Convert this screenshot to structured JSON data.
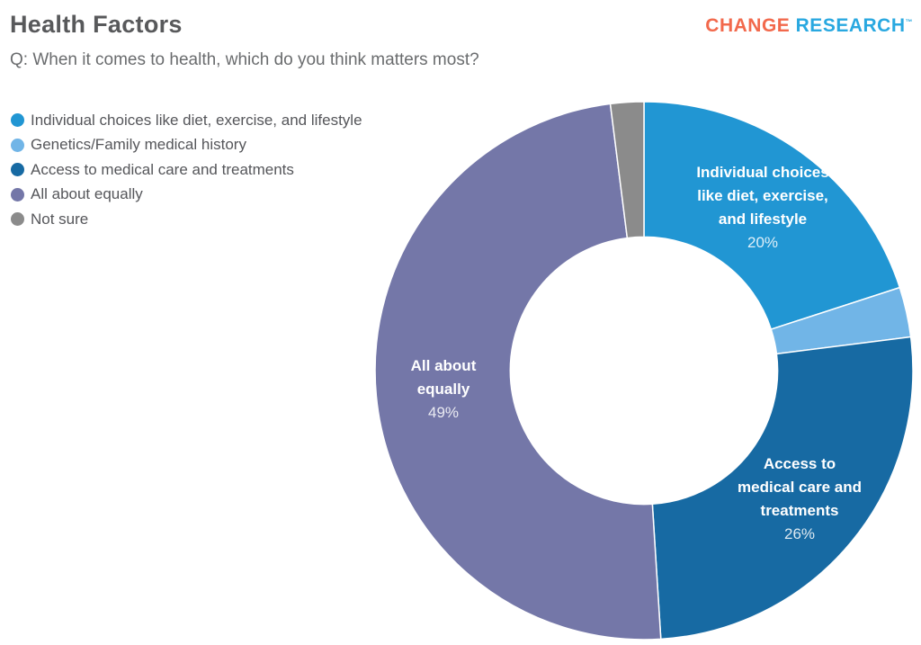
{
  "header": {
    "title": "Health Factors",
    "question": "Q: When it comes to health, which do you think matters most?"
  },
  "brand": {
    "change": "CHANGE",
    "research": "RESEARCH",
    "trademark": "™",
    "change_color": "#f2694c",
    "research_color": "#29a8e0"
  },
  "colors": {
    "title_text": "#58595b",
    "question_text": "#6a6c6e",
    "legend_text": "#55565a",
    "slice_border": "#ffffff",
    "label_text": "#ffffff"
  },
  "chart_data": {
    "type": "pie",
    "donut": true,
    "title": "Health Factors",
    "start_angle_deg": 0,
    "direction": "clockwise",
    "inner_radius_ratio": 0.497,
    "legend_position": "left",
    "slices": [
      {
        "label": "Individual choices like diet, exercise, and lifestyle",
        "value": 20,
        "pct_label": "20%",
        "color": "#2196d3",
        "show_label": true,
        "label_width": 155
      },
      {
        "label": "Genetics/Family medical history",
        "value": 3,
        "pct_label": "3%",
        "color": "#71b5e7",
        "show_label": false,
        "label_width": 0
      },
      {
        "label": "Access to medical care and treatments",
        "value": 26,
        "pct_label": "26%",
        "color": "#176aa3",
        "show_label": true,
        "label_width": 148
      },
      {
        "label": "All about equally",
        "value": 49,
        "pct_label": "49%",
        "color": "#7477a8",
        "show_label": true,
        "label_width": 110
      },
      {
        "label": "Not sure",
        "value": 2,
        "pct_label": "2%",
        "color": "#8b8b8b",
        "show_label": false,
        "label_width": 0
      }
    ]
  }
}
